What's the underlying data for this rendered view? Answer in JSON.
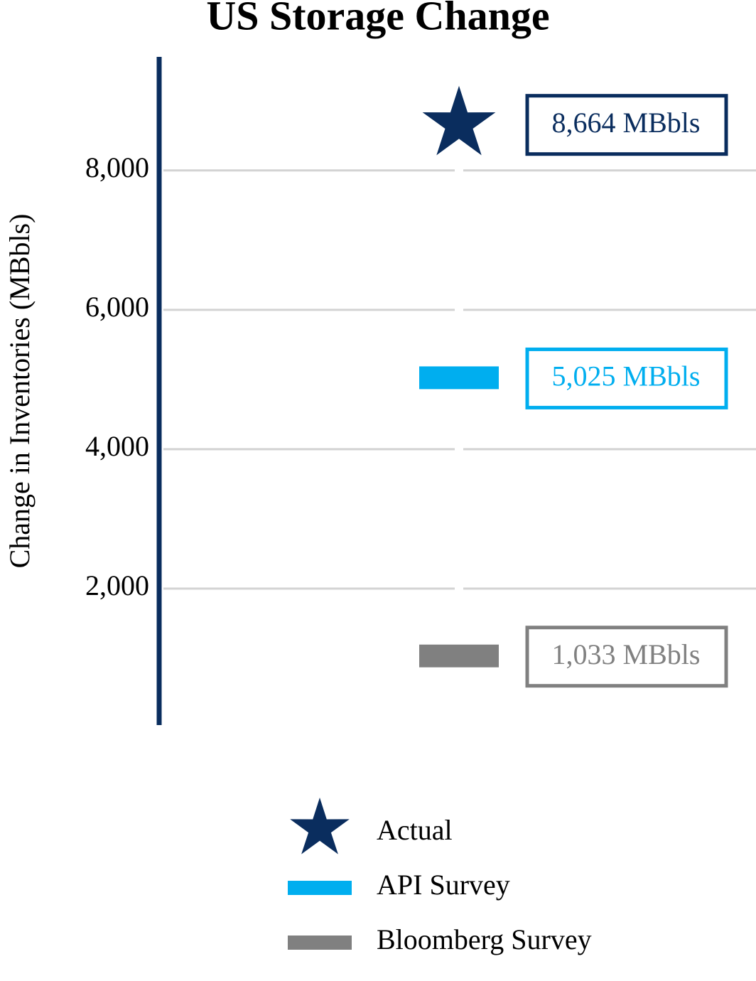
{
  "chart_data": {
    "type": "marker",
    "title": "US Storage Change",
    "y_label": "Change in Inventories (MBbls)",
    "ylim": [
      0,
      9630
    ],
    "yticks": [
      {
        "value": 2000,
        "label": "2,000"
      },
      {
        "value": 4000,
        "label": "4,000"
      },
      {
        "value": 6000,
        "label": "6,000"
      },
      {
        "value": 8000,
        "label": "8,000"
      }
    ],
    "grid": true,
    "legend": "bottom",
    "series": [
      {
        "name": "Actual",
        "color": "#0a2d5e",
        "marker": "star",
        "values": [
          8664
        ],
        "value_labels": [
          "8,664 MBbls"
        ]
      },
      {
        "name": "API Survey",
        "color": "#00aeef",
        "marker": "dash",
        "values": [
          5025
        ],
        "value_labels": [
          "5,025 MBbls"
        ]
      },
      {
        "name": "Bloomberg Survey",
        "color": "#808080",
        "marker": "dash",
        "values": [
          1033
        ],
        "value_labels": [
          "1,033 MBbls"
        ]
      }
    ]
  }
}
